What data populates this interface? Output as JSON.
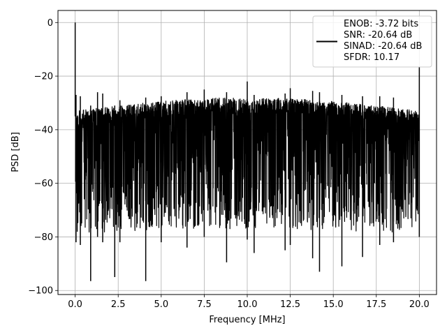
{
  "chart_data": {
    "type": "line",
    "title": "",
    "xlabel": "Frequency [MHz]",
    "ylabel": "PSD [dB]",
    "xlim": [
      -1.0,
      21.0
    ],
    "ylim": [
      -101.5,
      4.5
    ],
    "xticks": [
      0.0,
      2.5,
      5.0,
      7.5,
      10.0,
      12.5,
      15.0,
      17.5,
      20.0
    ],
    "xtick_labels": [
      "0.0",
      "2.5",
      "5.0",
      "7.5",
      "10.0",
      "12.5",
      "15.0",
      "17.5",
      "20.0"
    ],
    "yticks": [
      0,
      -20,
      -40,
      -60,
      -80,
      -100
    ],
    "ytick_labels": [
      "0",
      "−20",
      "−40",
      "−60",
      "−80",
      "−100"
    ],
    "grid": true,
    "legend_position": "top-right",
    "legend_lines": [
      "ENOB: -3.72 bits",
      "SNR: -20.64 dB",
      "SINAD: -20.64 dB",
      "SFDR: 10.17"
    ],
    "series": [
      {
        "color": "#000000",
        "x": [
          0.0,
          0.05,
          0.3,
          0.9,
          1.3,
          1.6,
          2.3,
          2.6,
          4.1,
          5.0,
          6.5,
          7.5,
          8.8,
          10.0,
          10.4,
          12.2,
          12.5,
          13.8,
          14.2,
          15.5,
          16.7,
          17.7,
          18.5,
          20.0
        ],
        "upper_envelope": [
          0.0,
          -27.0,
          -27.5,
          -31.0,
          -26.0,
          -26.5,
          -31.0,
          -29.0,
          -28.0,
          -27.5,
          -26.0,
          -25.0,
          -26.0,
          -22.0,
          -27.0,
          -26.5,
          -24.5,
          -25.5,
          -26.0,
          -27.0,
          -27.5,
          -27.5,
          -28.0,
          -16.5
        ],
        "lower_envelope": [
          -35.0,
          -82.0,
          -83.0,
          -96.5,
          -80.0,
          -82.0,
          -95.0,
          -82.0,
          -96.5,
          -82.0,
          -84.0,
          -80.0,
          -89.5,
          -81.0,
          -86.0,
          -85.0,
          -83.0,
          -88.0,
          -93.0,
          -91.0,
          -87.5,
          -83.0,
          -82.0,
          -80.0
        ]
      }
    ],
    "noise_floor_db": [
      -33.0,
      -71.0
    ]
  }
}
